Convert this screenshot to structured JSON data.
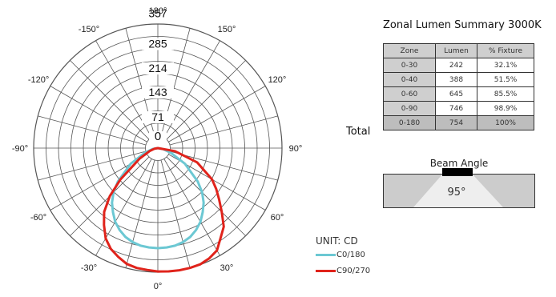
{
  "chart_data": {
    "type": "polar",
    "radial_ticks": [
      "71",
      "143",
      "214",
      "285",
      "357"
    ],
    "angle_labels": [
      "0°",
      "30°",
      "60°",
      "90°",
      "120°",
      "150°",
      "180°",
      "-150°",
      "-120°",
      "-90°",
      "-60°",
      "-30°"
    ],
    "rmax": 357,
    "unit_label": "UNIT: CD",
    "series": [
      {
        "name": "C0/180",
        "color": "#6cc8d3",
        "points": [
          [
            -90,
            0
          ],
          [
            -80,
            15
          ],
          [
            -70,
            40
          ],
          [
            -60,
            90
          ],
          [
            -50,
            150
          ],
          [
            -45,
            180
          ],
          [
            -40,
            205
          ],
          [
            -35,
            225
          ],
          [
            -30,
            245
          ],
          [
            -25,
            260
          ],
          [
            -20,
            272
          ],
          [
            -15,
            280
          ],
          [
            -10,
            285
          ],
          [
            -5,
            287
          ],
          [
            0,
            288
          ],
          [
            5,
            287
          ],
          [
            10,
            285
          ],
          [
            15,
            280
          ],
          [
            20,
            272
          ],
          [
            25,
            260
          ],
          [
            30,
            245
          ],
          [
            35,
            225
          ],
          [
            40,
            205
          ],
          [
            45,
            180
          ],
          [
            50,
            150
          ],
          [
            60,
            90
          ],
          [
            70,
            40
          ],
          [
            80,
            15
          ],
          [
            90,
            0
          ]
        ]
      },
      {
        "name": "C90/270",
        "color": "#e0231b",
        "points": [
          [
            -90,
            0
          ],
          [
            -80,
            10
          ],
          [
            -70,
            25
          ],
          [
            -60,
            60
          ],
          [
            -50,
            140
          ],
          [
            -45,
            195
          ],
          [
            -40,
            240
          ],
          [
            -35,
            270
          ],
          [
            -30,
            300
          ],
          [
            -25,
            320
          ],
          [
            -20,
            333
          ],
          [
            -15,
            345
          ],
          [
            -10,
            350
          ],
          [
            -5,
            352
          ],
          [
            0,
            355
          ],
          [
            5,
            356
          ],
          [
            10,
            357
          ],
          [
            15,
            357
          ],
          [
            20,
            356
          ],
          [
            25,
            350
          ],
          [
            30,
            340
          ],
          [
            35,
            315
          ],
          [
            40,
            295
          ],
          [
            45,
            260
          ],
          [
            50,
            230
          ],
          [
            55,
            205
          ],
          [
            60,
            180
          ],
          [
            70,
            120
          ],
          [
            80,
            50
          ],
          [
            90,
            0
          ]
        ]
      }
    ]
  },
  "summary": {
    "title": "Zonal Lumen Summary 3000K",
    "headers": [
      "Zone",
      "Lumen",
      "% Fixture"
    ],
    "rows": [
      [
        "0-30",
        "242",
        "32.1%"
      ],
      [
        "0-40",
        "388",
        "51.5%"
      ],
      [
        "0-60",
        "645",
        "85.5%"
      ],
      [
        "0-90",
        "746",
        "98.9%"
      ]
    ],
    "total_label": "Total",
    "total_row": [
      "0-180",
      "754",
      "100%"
    ]
  },
  "beam": {
    "title": "Beam Angle",
    "value": "95°"
  }
}
